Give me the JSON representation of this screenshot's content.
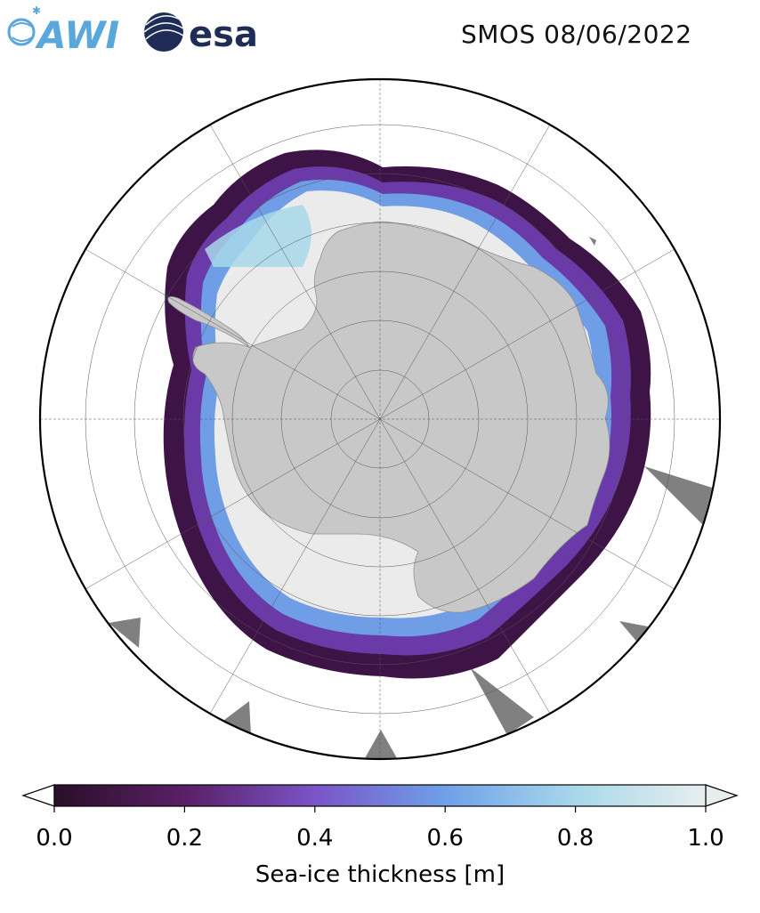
{
  "title": "SMOS 08/06/2022",
  "logos": {
    "awi": {
      "text": "AWI",
      "color": "#5aa7dc"
    },
    "esa": {
      "text": "esa",
      "color": "#1f2c55"
    }
  },
  "colorbar": {
    "label": "Sea-ice thickness [m]",
    "ticks": [
      "0.0",
      "0.2",
      "0.4",
      "0.6",
      "0.8",
      "1.0"
    ],
    "tick_values": [
      0.0,
      0.2,
      0.4,
      0.6,
      0.8,
      1.0
    ],
    "range": [
      0.0,
      1.0
    ],
    "colors": [
      "#2a0f2a",
      "#5a1f66",
      "#7a54c8",
      "#6fa0e8",
      "#a8d8ea",
      "#e8eeee"
    ]
  },
  "colors": {
    "land": "#c8c8c8",
    "ocean": "#ffffff",
    "nodata": "#808080",
    "thick_ice": "#ebebeb"
  }
}
